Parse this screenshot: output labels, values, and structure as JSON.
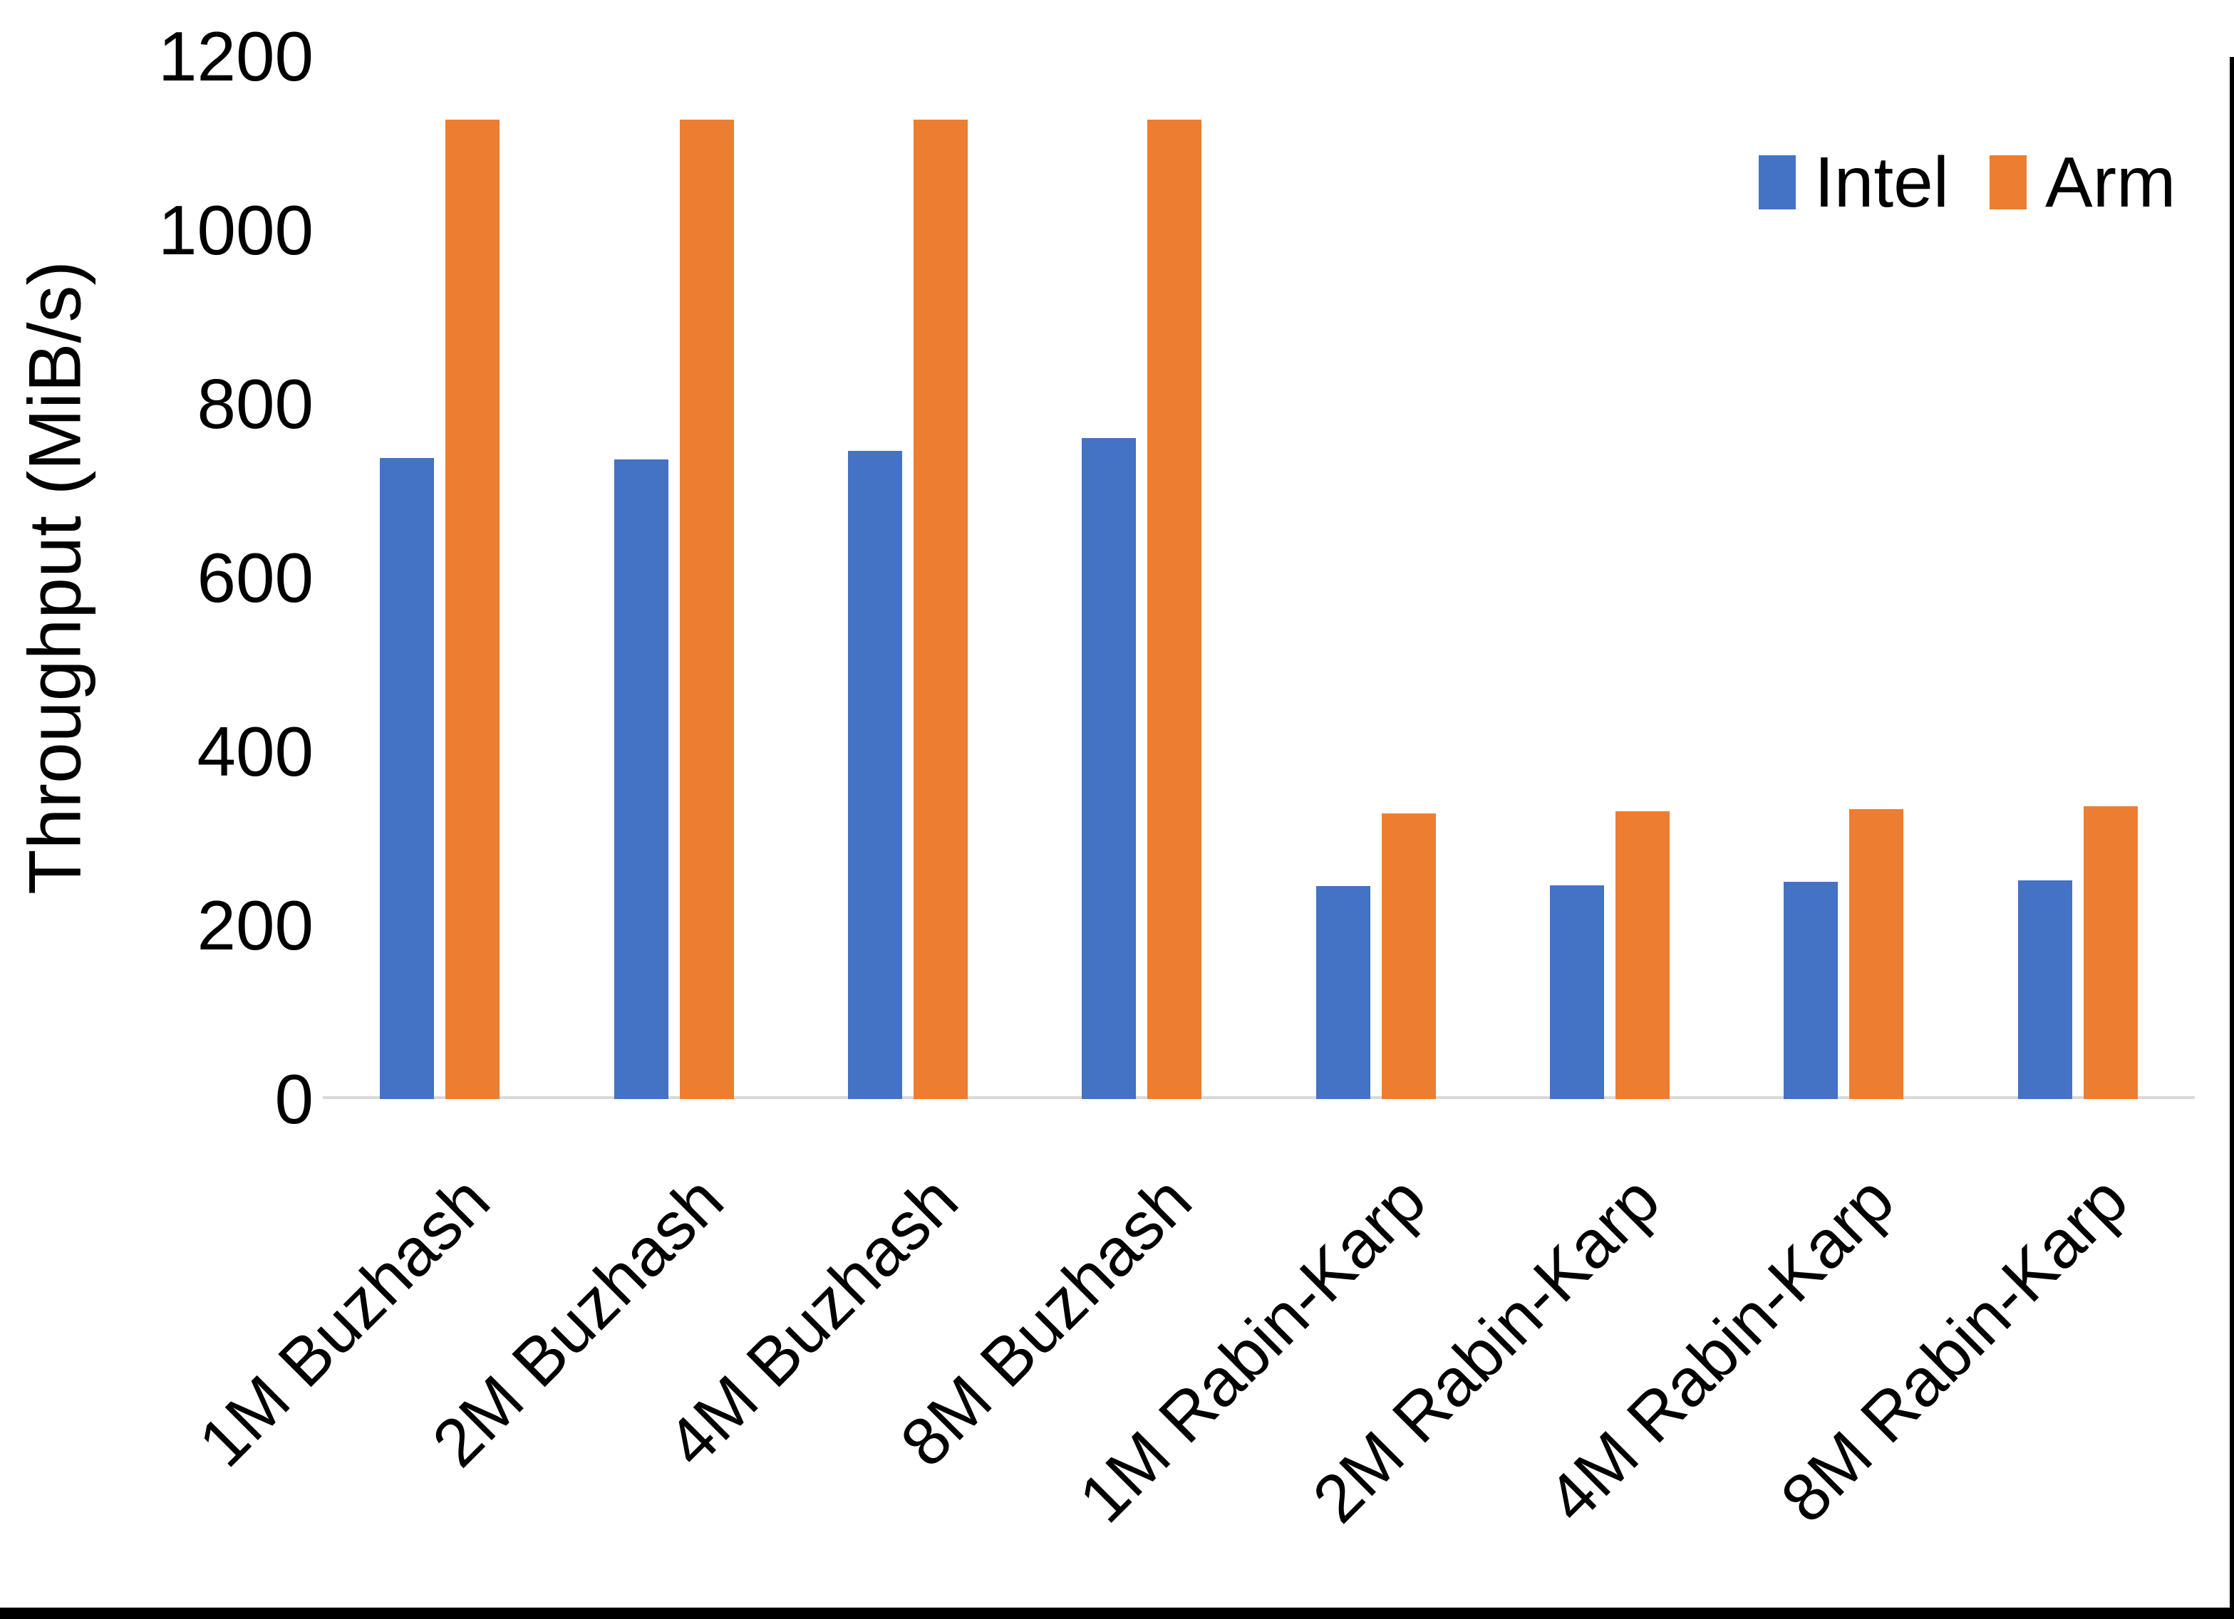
{
  "figure": {
    "background": "#FFFFFF",
    "text_color": "#000000",
    "axis_line_color": "#D9D9D9",
    "right_edge_color": "#000000",
    "bottom_edge_color": "#000000"
  },
  "chart_data": {
    "type": "bar",
    "title": "",
    "xlabel": "",
    "ylabel": "Throughput (MiB/s)",
    "ylim": [
      0,
      1200
    ],
    "yticks": [
      0,
      200,
      400,
      600,
      800,
      1000,
      1200
    ],
    "grid": false,
    "legend_position": "top-right",
    "categories": [
      "1M Buzhash",
      "2M Buzhash",
      "4M Buzhash",
      "8M Buzhash",
      "1M Rabin-Karp",
      "2M Rabin-Karp",
      "4M Rabin-Karp",
      "8M Rabin-Karp"
    ],
    "series": [
      {
        "name": "Intel",
        "color": "#4472C4",
        "values": [
          738,
          736,
          746,
          761,
          245,
          246,
          250,
          252
        ]
      },
      {
        "name": "Arm",
        "color": "#ED7D31",
        "values": [
          1127,
          1127,
          1127,
          1127,
          329,
          331,
          334,
          337
        ]
      }
    ]
  }
}
